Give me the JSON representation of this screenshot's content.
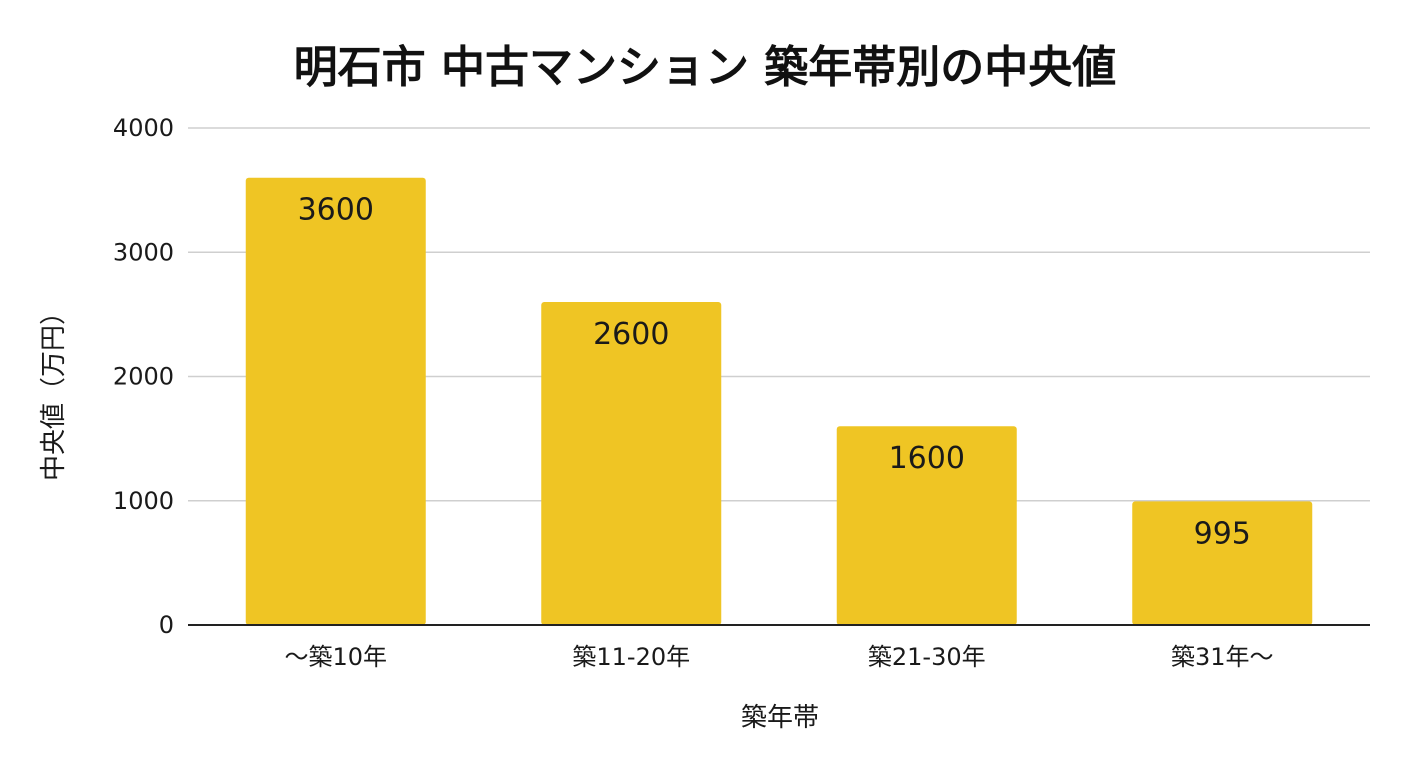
{
  "chart_data": {
    "type": "bar",
    "title": "明石市 中古マンション 築年帯別の中央値",
    "xlabel": "築年帯",
    "ylabel": "中央値（万円）",
    "categories": [
      "～築10年",
      "築11-20年",
      "築21-30年",
      "築31年～"
    ],
    "values": [
      3600,
      2600,
      1600,
      995
    ],
    "data_labels": [
      "3600",
      "2600",
      "1600",
      "995"
    ],
    "ylim": [
      0,
      4000
    ],
    "yticks": [
      0,
      1000,
      2000,
      3000,
      4000
    ],
    "ytick_labels": [
      "0",
      "1000",
      "2000",
      "3000",
      "4000"
    ],
    "grid": true,
    "legend": "none",
    "bar_color": "#EFC524"
  }
}
